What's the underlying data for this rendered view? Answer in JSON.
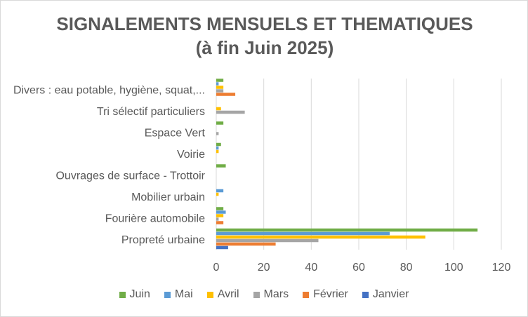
{
  "chart_data": {
    "type": "bar",
    "orientation": "horizontal",
    "title": "SIGNALEMENTS MENSUELS ET THEMATIQUES",
    "subtitle": "(à fin Juin 2025)",
    "categories": [
      "Propreté urbaine",
      "Fourière automobile",
      "Mobilier urbain",
      "Ouvrages de surface - Trottoir",
      "Voirie",
      "Espace Vert",
      "Tri sélectif particuliers",
      "Divers : eau potable, hygiène, squat,..."
    ],
    "series": [
      {
        "name": "Janvier",
        "color": "#4472c4",
        "values": [
          5,
          0,
          0,
          0,
          0,
          0,
          0,
          0
        ]
      },
      {
        "name": "Février",
        "color": "#ed7d31",
        "values": [
          25,
          3,
          0,
          0,
          0,
          0,
          0,
          8
        ]
      },
      {
        "name": "Mars",
        "color": "#a5a5a5",
        "values": [
          43,
          1,
          0,
          0,
          0,
          1,
          12,
          3
        ]
      },
      {
        "name": "Avril",
        "color": "#ffc000",
        "values": [
          88,
          3,
          1,
          0,
          1,
          0,
          2,
          3
        ]
      },
      {
        "name": "Mai",
        "color": "#5b9bd5",
        "values": [
          73,
          4,
          3,
          0,
          1,
          0,
          0,
          1
        ]
      },
      {
        "name": "Juin",
        "color": "#70ad47",
        "values": [
          110,
          3,
          0,
          4,
          2,
          3,
          0,
          3
        ]
      }
    ],
    "xlim": [
      0,
      120
    ],
    "xticks": [
      "0",
      "20",
      "40",
      "60",
      "80",
      "100",
      "120"
    ],
    "grid": true,
    "legend_position": "bottom",
    "legend_order": [
      "Juin",
      "Mai",
      "Avril",
      "Mars",
      "Février",
      "Janvier"
    ]
  }
}
